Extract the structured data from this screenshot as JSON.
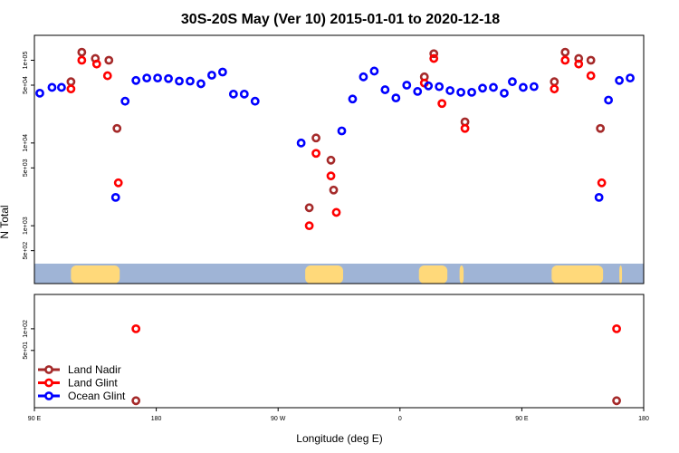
{
  "chart_data": {
    "type": "scatter",
    "title": "30S-20S May (Ver 10)   2015-01-01 to 2020-12-18",
    "xlabel": "Longitude (deg E)",
    "ylabel": "N Total",
    "xlim": [
      90,
      450
    ],
    "x_ticks": [
      {
        "value": 90,
        "label": "90 E"
      },
      {
        "value": 180,
        "label": "180"
      },
      {
        "value": 270,
        "label": "90 W"
      },
      {
        "value": 360,
        "label": "0"
      },
      {
        "value": 450,
        "label": "90 E"
      },
      {
        "value": 540,
        "label": "180"
      }
    ],
    "xlim_shown": [
      90,
      540
    ],
    "top_panel": {
      "yscale": "log",
      "ylim": [
        200,
        200000
      ],
      "y_ticks": [
        {
          "value": 500,
          "label": "5e+02"
        },
        {
          "value": 1000,
          "label": "1e+03"
        },
        {
          "value": 5000,
          "label": "5e+03"
        },
        {
          "value": 10000,
          "label": "1e+04"
        },
        {
          "value": 50000,
          "label": "5e+04"
        },
        {
          "value": 100000,
          "label": "1e+05"
        }
      ],
      "land_spans": [
        [
          117,
          153
        ],
        [
          290,
          318
        ],
        [
          374,
          395
        ],
        [
          404,
          407
        ],
        [
          472,
          510
        ],
        [
          522,
          524
        ]
      ]
    },
    "bottom_panel": {
      "yscale": "log",
      "ylim": [
        8,
        300
      ],
      "y_ticks": [
        {
          "value": 50,
          "label": "5e+01"
        },
        {
          "value": 100,
          "label": "1e+02"
        }
      ]
    },
    "series": [
      {
        "name": "Land Nadir",
        "color": "#a52a2a",
        "top": [
          {
            "x": 117,
            "y": 55000
          },
          {
            "x": 125,
            "y": 125000
          },
          {
            "x": 135,
            "y": 105000
          },
          {
            "x": 145,
            "y": 100000
          },
          {
            "x": 151,
            "y": 15000
          },
          {
            "x": 293,
            "y": 1650
          },
          {
            "x": 298,
            "y": 11500
          },
          {
            "x": 309,
            "y": 6200
          },
          {
            "x": 311,
            "y": 2700
          },
          {
            "x": 378,
            "y": 63000
          },
          {
            "x": 385,
            "y": 120000
          },
          {
            "x": 408,
            "y": 18000
          },
          {
            "x": 474,
            "y": 55000
          },
          {
            "x": 482,
            "y": 125000
          },
          {
            "x": 492,
            "y": 105000
          },
          {
            "x": 501,
            "y": 100000
          },
          {
            "x": 508,
            "y": 15000
          }
        ],
        "bottom": [
          {
            "x": 165,
            "y": 10
          },
          {
            "x": 520,
            "y": 10
          }
        ]
      },
      {
        "name": "Land Glint",
        "color": "#ff0000",
        "top": [
          {
            "x": 117,
            "y": 45000
          },
          {
            "x": 125,
            "y": 100000
          },
          {
            "x": 136,
            "y": 90000
          },
          {
            "x": 144,
            "y": 65000
          },
          {
            "x": 152,
            "y": 3300
          },
          {
            "x": 293,
            "y": 1000
          },
          {
            "x": 298,
            "y": 7500
          },
          {
            "x": 309,
            "y": 4000
          },
          {
            "x": 313,
            "y": 1450
          },
          {
            "x": 378,
            "y": 53000
          },
          {
            "x": 385,
            "y": 105000
          },
          {
            "x": 391,
            "y": 30000
          },
          {
            "x": 408,
            "y": 15000
          },
          {
            "x": 474,
            "y": 45000
          },
          {
            "x": 482,
            "y": 100000
          },
          {
            "x": 492,
            "y": 90000
          },
          {
            "x": 501,
            "y": 65000
          },
          {
            "x": 509,
            "y": 3300
          }
        ],
        "bottom": [
          {
            "x": 165,
            "y": 100
          },
          {
            "x": 520,
            "y": 100
          }
        ]
      },
      {
        "name": "Ocean Glint",
        "color": "#0000ff",
        "top": [
          {
            "x": 94,
            "y": 40000
          },
          {
            "x": 103,
            "y": 47000
          },
          {
            "x": 110,
            "y": 47000
          },
          {
            "x": 150,
            "y": 2200
          },
          {
            "x": 157,
            "y": 32000
          },
          {
            "x": 165,
            "y": 57000
          },
          {
            "x": 173,
            "y": 61000
          },
          {
            "x": 181,
            "y": 61000
          },
          {
            "x": 189,
            "y": 60000
          },
          {
            "x": 197,
            "y": 56000
          },
          {
            "x": 205,
            "y": 56000
          },
          {
            "x": 213,
            "y": 52000
          },
          {
            "x": 221,
            "y": 66000
          },
          {
            "x": 229,
            "y": 72000
          },
          {
            "x": 237,
            "y": 39000
          },
          {
            "x": 245,
            "y": 39000
          },
          {
            "x": 253,
            "y": 32000
          },
          {
            "x": 287,
            "y": 10000
          },
          {
            "x": 317,
            "y": 14000
          },
          {
            "x": 325,
            "y": 34000
          },
          {
            "x": 333,
            "y": 63000
          },
          {
            "x": 341,
            "y": 74000
          },
          {
            "x": 349,
            "y": 44000
          },
          {
            "x": 357,
            "y": 35000
          },
          {
            "x": 365,
            "y": 50000
          },
          {
            "x": 373,
            "y": 42000
          },
          {
            "x": 381,
            "y": 49000
          },
          {
            "x": 389,
            "y": 48000
          },
          {
            "x": 397,
            "y": 43000
          },
          {
            "x": 405,
            "y": 41000
          },
          {
            "x": 413,
            "y": 41000
          },
          {
            "x": 421,
            "y": 46000
          },
          {
            "x": 429,
            "y": 47000
          },
          {
            "x": 437,
            "y": 40000
          },
          {
            "x": 443,
            "y": 55000
          },
          {
            "x": 451,
            "y": 47000
          },
          {
            "x": 459,
            "y": 48000
          },
          {
            "x": 507,
            "y": 2200
          },
          {
            "x": 514,
            "y": 33000
          },
          {
            "x": 522,
            "y": 57000
          },
          {
            "x": 530,
            "y": 61000
          }
        ],
        "bottom": []
      }
    ],
    "legend": {
      "placement": "bottom-left",
      "entries": [
        "Land Nadir",
        "Land Glint",
        "Ocean Glint"
      ]
    },
    "colors": {
      "ocean_band": "#9fb4d6",
      "land_band": "#ffd97a"
    }
  }
}
